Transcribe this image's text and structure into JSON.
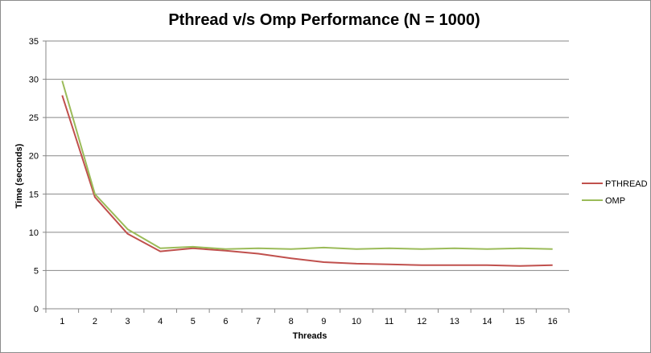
{
  "chart_data": {
    "type": "line",
    "title": "Pthread v/s Omp Performance (N = 1000)",
    "xlabel": "Threads",
    "ylabel": "Time (seconds)",
    "x": [
      1,
      2,
      3,
      4,
      5,
      6,
      7,
      8,
      9,
      10,
      11,
      12,
      13,
      14,
      15,
      16
    ],
    "x_tick_labels": [
      "1",
      "2",
      "3",
      "4",
      "5",
      "6",
      "7",
      "8",
      "9",
      "10",
      "11",
      "12",
      "13",
      "14",
      "15",
      "16"
    ],
    "ylim": [
      0,
      35
    ],
    "y_ticks": [
      0,
      5,
      10,
      15,
      20,
      25,
      30,
      35
    ],
    "y_tick_labels": [
      "0",
      "5",
      "10",
      "15",
      "20",
      "25",
      "30",
      "35"
    ],
    "grid": "horizontal",
    "legend_position": "right",
    "series": [
      {
        "name": "PTHREAD",
        "color": "#c0504d",
        "values": [
          27.9,
          14.6,
          9.8,
          7.5,
          7.9,
          7.6,
          7.2,
          6.6,
          6.1,
          5.9,
          5.8,
          5.7,
          5.7,
          5.7,
          5.6,
          5.7
        ]
      },
      {
        "name": "OMP",
        "color": "#9bbb59",
        "values": [
          29.8,
          15.0,
          10.4,
          7.9,
          8.1,
          7.8,
          7.9,
          7.8,
          8.0,
          7.8,
          7.9,
          7.8,
          7.9,
          7.8,
          7.9,
          7.8
        ]
      }
    ]
  }
}
